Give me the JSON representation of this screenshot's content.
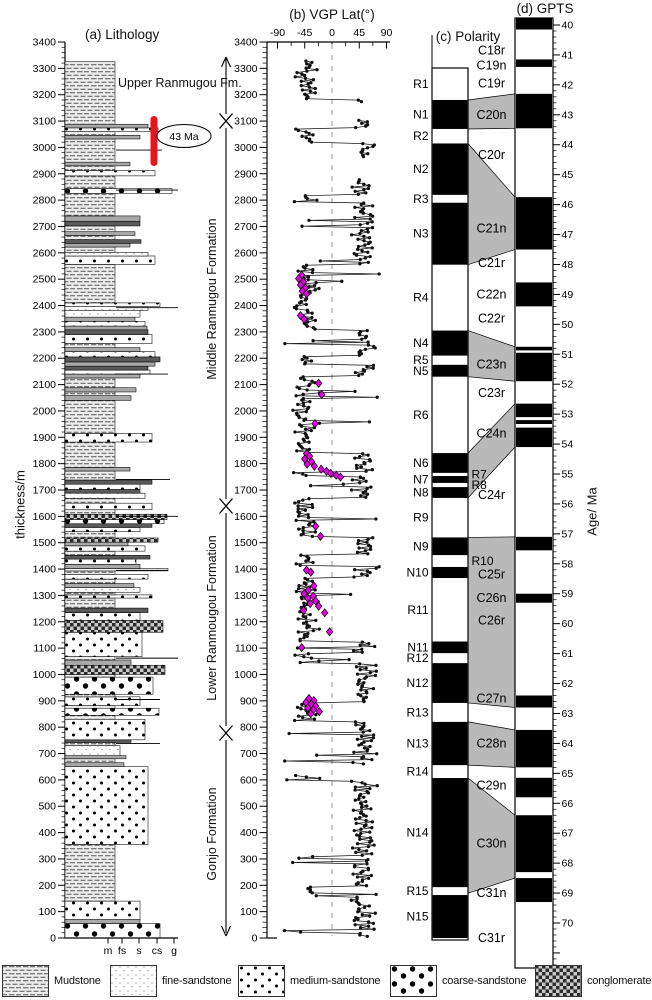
{
  "titles": {
    "a": "(a) Lithology",
    "b": "(b) VGP Lat(°)",
    "c": "(c) Polarity",
    "d": "(d) GPTS"
  },
  "axis_labels": {
    "thickness": "thickness/m",
    "age": "Age/ Ma",
    "grain_sizes": [
      "m",
      "fs",
      "s",
      "cs",
      "g"
    ]
  },
  "annotations": {
    "sample_age": "43 Ma"
  },
  "formations": [
    {
      "name": "Upper Ranmugou Fm.",
      "top_m": 3350,
      "base_m": 3100
    },
    {
      "name": "Middle Ranmugou Formation",
      "top_m": 3100,
      "base_m": 1640
    },
    {
      "name": "Lower Ranmougou Formation",
      "top_m": 1640,
      "base_m": 780
    },
    {
      "name": "Gonjo Formation",
      "top_m": 780,
      "base_m": 0
    }
  ],
  "legend": {
    "items": [
      {
        "label": "Mudstone",
        "lith": "m"
      },
      {
        "label": "fine-sandstone",
        "lith": "f"
      },
      {
        "label": "medium-sandstone",
        "lith": "s"
      },
      {
        "label": "coarse-sandstone",
        "lith": "c"
      },
      {
        "label": "conglomerate",
        "lith": "g"
      }
    ]
  },
  "colors": {
    "rejected_points": "#e500e5",
    "sample_bar": "#e8141e",
    "correlation_fill": "#b9b9b9",
    "axis": "#000000"
  },
  "chart_data": {
    "type": "composite-stratigraphy",
    "thickness_axis": {
      "min": 0,
      "max": 3400,
      "major_tick": 100,
      "minor_tick": 20
    },
    "vgp": {
      "xmin": -90,
      "xmax": 90,
      "xticks": [
        -90,
        -45,
        0,
        45,
        90
      ],
      "minor_xticks": [
        -67.5,
        -22.5,
        22.5,
        67.5
      ],
      "zero_line_dashed": true,
      "generation": {
        "seed": 9,
        "step_m": 5.5,
        "top_m": 3328,
        "bottom_m": 4,
        "normal_mean_lat": 52,
        "reverse_mean_lat": -43,
        "spread": 24,
        "outlier_fraction": 0.06,
        "gaps_m": [
          [
            3170,
            3106
          ],
          [
            2962,
            2880
          ],
          [
            658,
            622
          ]
        ]
      },
      "rejected_points": [
        [
          2515,
          -50
        ],
        [
          2502,
          -55
        ],
        [
          2490,
          -47
        ],
        [
          2478,
          -52
        ],
        [
          2466,
          -44
        ],
        [
          2455,
          -49
        ],
        [
          2444,
          -42
        ],
        [
          2362,
          -52
        ],
        [
          2348,
          -46
        ],
        [
          2105,
          -22
        ],
        [
          2062,
          -17
        ],
        [
          1952,
          -28
        ],
        [
          1838,
          -42
        ],
        [
          1828,
          -37
        ],
        [
          1818,
          -45
        ],
        [
          1808,
          -34
        ],
        [
          1798,
          -41
        ],
        [
          1790,
          -29
        ],
        [
          1779,
          -18
        ],
        [
          1771,
          -9
        ],
        [
          1763,
          -2
        ],
        [
          1756,
          7
        ],
        [
          1749,
          14
        ],
        [
          1562,
          -27
        ],
        [
          1524,
          -19
        ],
        [
          1396,
          -42
        ],
        [
          1388,
          -35
        ],
        [
          1336,
          -30
        ],
        [
          1320,
          -39
        ],
        [
          1306,
          -46
        ],
        [
          1297,
          -31
        ],
        [
          1289,
          -40
        ],
        [
          1279,
          -27
        ],
        [
          1269,
          -36
        ],
        [
          1259,
          -22
        ],
        [
          1243,
          -47
        ],
        [
          1234,
          -12
        ],
        [
          1162,
          -4
        ],
        [
          1102,
          -50
        ],
        [
          909,
          -38
        ],
        [
          901,
          -30
        ],
        [
          894,
          -43
        ],
        [
          887,
          -34
        ],
        [
          880,
          -27
        ],
        [
          873,
          -40
        ],
        [
          866,
          -31
        ],
        [
          859,
          -21
        ],
        [
          851,
          -35
        ]
      ]
    },
    "sample_age_marker": {
      "label": "43 Ma",
      "interval_m": [
        2930,
        3110
      ]
    },
    "lithology_layers": [
      [
        0,
        55,
        "c",
        160
      ],
      [
        55,
        70,
        "y",
        140
      ],
      [
        70,
        140,
        "s",
        140
      ],
      [
        140,
        355,
        "m",
        115
      ],
      [
        355,
        650,
        "s",
        148
      ],
      [
        650,
        665,
        "y",
        124
      ],
      [
        665,
        680,
        "m",
        115
      ],
      [
        680,
        692,
        "y",
        126
      ],
      [
        692,
        730,
        "f",
        120
      ],
      [
        730,
        742,
        "m",
        115
      ],
      [
        742,
        752,
        "d",
        131
      ],
      [
        752,
        830,
        "s",
        145
      ],
      [
        830,
        845,
        "m",
        115
      ],
      [
        845,
        872,
        "c",
        159
      ],
      [
        872,
        882,
        "m",
        115
      ],
      [
        882,
        915,
        "s",
        140
      ],
      [
        915,
        925,
        "m",
        115
      ],
      [
        925,
        990,
        "c",
        153
      ],
      [
        990,
        1000,
        "m",
        115
      ],
      [
        1000,
        1035,
        "g",
        165
      ],
      [
        1035,
        1055,
        "y",
        131
      ],
      [
        1055,
        1068,
        "m",
        115
      ],
      [
        1068,
        1160,
        "s",
        142
      ],
      [
        1160,
        1205,
        "g",
        163
      ],
      [
        1205,
        1235,
        "s",
        140
      ],
      [
        1235,
        1252,
        "d",
        148
      ],
      [
        1252,
        1290,
        "m",
        115
      ],
      [
        1290,
        1302,
        "s",
        152
      ],
      [
        1302,
        1312,
        "m",
        115
      ],
      [
        1312,
        1330,
        "f",
        140
      ],
      [
        1330,
        1345,
        "y",
        134
      ],
      [
        1345,
        1362,
        "m",
        115
      ],
      [
        1362,
        1380,
        "s",
        148
      ],
      [
        1380,
        1393,
        "m",
        115
      ],
      [
        1393,
        1402,
        "c",
        168
      ],
      [
        1402,
        1418,
        "y",
        140
      ],
      [
        1418,
        1438,
        "s",
        136
      ],
      [
        1438,
        1452,
        "d",
        150
      ],
      [
        1452,
        1468,
        "m",
        115
      ],
      [
        1468,
        1488,
        "s",
        145
      ],
      [
        1488,
        1502,
        "y",
        128
      ],
      [
        1502,
        1518,
        "g",
        158
      ],
      [
        1518,
        1542,
        "m",
        115
      ],
      [
        1542,
        1558,
        "s",
        140
      ],
      [
        1558,
        1572,
        "d",
        152
      ],
      [
        1572,
        1588,
        "c",
        164
      ],
      [
        1588,
        1608,
        "g",
        167
      ],
      [
        1608,
        1625,
        "m",
        115
      ],
      [
        1625,
        1650,
        "s",
        152
      ],
      [
        1650,
        1668,
        "m",
        115
      ],
      [
        1668,
        1688,
        "f",
        145
      ],
      [
        1688,
        1702,
        "d",
        140
      ],
      [
        1702,
        1722,
        "s",
        140
      ],
      [
        1722,
        1738,
        "d",
        152
      ],
      [
        1738,
        1772,
        "m",
        115
      ],
      [
        1772,
        1786,
        "y",
        130
      ],
      [
        1786,
        1882,
        "m",
        115
      ],
      [
        1882,
        1915,
        "s",
        152
      ],
      [
        1915,
        2040,
        "m",
        115
      ],
      [
        2040,
        2058,
        "y",
        131
      ],
      [
        2058,
        2072,
        "m",
        115
      ],
      [
        2072,
        2088,
        "y",
        136
      ],
      [
        2088,
        2125,
        "m",
        115
      ],
      [
        2125,
        2140,
        "y",
        140
      ],
      [
        2140,
        2155,
        "s",
        150
      ],
      [
        2155,
        2170,
        "d",
        148
      ],
      [
        2170,
        2186,
        "y",
        155
      ],
      [
        2186,
        2205,
        "d",
        160
      ],
      [
        2205,
        2225,
        "s",
        155
      ],
      [
        2225,
        2240,
        "y",
        140
      ],
      [
        2240,
        2256,
        "m",
        115
      ],
      [
        2256,
        2290,
        "s",
        152
      ],
      [
        2290,
        2308,
        "d",
        148
      ],
      [
        2308,
        2322,
        "y",
        147
      ],
      [
        2322,
        2340,
        "s",
        145
      ],
      [
        2340,
        2356,
        "y",
        135
      ],
      [
        2356,
        2382,
        "f",
        140
      ],
      [
        2382,
        2396,
        "f",
        148
      ],
      [
        2396,
        2410,
        "s",
        160
      ],
      [
        2410,
        2556,
        "m",
        115
      ],
      [
        2556,
        2588,
        "s",
        155
      ],
      [
        2588,
        2602,
        "f",
        148
      ],
      [
        2602,
        2622,
        "m",
        115
      ],
      [
        2622,
        2636,
        "y",
        130
      ],
      [
        2636,
        2650,
        "d",
        141
      ],
      [
        2650,
        2666,
        "m",
        115
      ],
      [
        2666,
        2680,
        "y",
        135
      ],
      [
        2680,
        2702,
        "m",
        115
      ],
      [
        2702,
        2720,
        "d",
        140
      ],
      [
        2720,
        2740,
        "y",
        140
      ],
      [
        2740,
        2826,
        "m",
        115
      ],
      [
        2826,
        2844,
        "c",
        172
      ],
      [
        2844,
        2892,
        "m",
        115
      ],
      [
        2892,
        2912,
        "s",
        155
      ],
      [
        2912,
        2930,
        "m",
        115
      ],
      [
        2930,
        2944,
        "y",
        130
      ],
      [
        2944,
        3032,
        "m",
        115
      ],
      [
        3032,
        3046,
        "y",
        140
      ],
      [
        3046,
        3060,
        "m",
        115
      ],
      [
        3060,
        3074,
        "s",
        158
      ],
      [
        3074,
        3088,
        "y",
        148
      ],
      [
        3088,
        3325,
        "m",
        115
      ]
    ],
    "stringers": [
      [
        2990,
        162
      ],
      [
        2838,
        178
      ],
      [
        2392,
        178
      ],
      [
        2140,
        168
      ],
      [
        1740,
        170
      ],
      [
        1600,
        178
      ],
      [
        1395,
        168
      ],
      [
        1062,
        178
      ],
      [
        905,
        160
      ],
      [
        738,
        160
      ]
    ],
    "polarity_zones": [
      {
        "label": "R1",
        "pol": "R",
        "top": 3300,
        "base": 3180
      },
      {
        "label": "N1",
        "pol": "N",
        "top": 3180,
        "base": 3070
      },
      {
        "label": "R2",
        "pol": "R",
        "top": 3070,
        "base": 3015
      },
      {
        "label": "N2",
        "pol": "N",
        "top": 3015,
        "base": 2820
      },
      {
        "label": "R3",
        "pol": "R",
        "top": 2820,
        "base": 2790
      },
      {
        "label": "N3",
        "pol": "N",
        "top": 2790,
        "base": 2555
      },
      {
        "label": "R4",
        "pol": "R",
        "top": 2555,
        "base": 2305
      },
      {
        "label": "N4",
        "pol": "N",
        "top": 2305,
        "base": 2210
      },
      {
        "label": "R5",
        "pol": "R",
        "top": 2210,
        "base": 2175
      },
      {
        "label": "N5",
        "pol": "N",
        "top": 2175,
        "base": 2130
      },
      {
        "label": "R6",
        "pol": "R",
        "top": 2130,
        "base": 1840
      },
      {
        "label": "N6",
        "pol": "N",
        "top": 1840,
        "base": 1765
      },
      {
        "label": "R7",
        "pol": "R",
        "top": 1765,
        "base": 1753,
        "side": "right"
      },
      {
        "label": "N7",
        "pol": "N",
        "top": 1753,
        "base": 1727
      },
      {
        "label": "R8",
        "pol": "R",
        "top": 1727,
        "base": 1711,
        "side": "right"
      },
      {
        "label": "N8",
        "pol": "N",
        "top": 1711,
        "base": 1670
      },
      {
        "label": "R9",
        "pol": "R",
        "top": 1670,
        "base": 1520
      },
      {
        "label": "N9",
        "pol": "N",
        "top": 1520,
        "base": 1453
      },
      {
        "label": "R10",
        "pol": "R",
        "top": 1453,
        "base": 1408,
        "side": "right"
      },
      {
        "label": "N10",
        "pol": "N",
        "top": 1408,
        "base": 1366
      },
      {
        "label": "R11",
        "pol": "R",
        "top": 1366,
        "base": 1125
      },
      {
        "label": "N11",
        "pol": "N",
        "top": 1125,
        "base": 1081
      },
      {
        "label": "R12",
        "pol": "R",
        "top": 1081,
        "base": 1043
      },
      {
        "label": "N12",
        "pol": "N",
        "top": 1043,
        "base": 892
      },
      {
        "label": "R13",
        "pol": "R",
        "top": 892,
        "base": 820
      },
      {
        "label": "N13",
        "pol": "N",
        "top": 820,
        "base": 656
      },
      {
        "label": "R14",
        "pol": "R",
        "top": 656,
        "base": 607
      },
      {
        "label": "N14",
        "pol": "N",
        "top": 607,
        "base": 193
      },
      {
        "label": "R15",
        "pol": "R",
        "top": 193,
        "base": 163
      },
      {
        "label": "N15",
        "pol": "N",
        "top": 163,
        "base": 0
      }
    ],
    "gpts": {
      "age_min": 40,
      "age_max": 70,
      "major_tick": 1,
      "minor_tick": 0.2,
      "ruler_end": 71.4,
      "normal_intervals": [
        [
          39.5,
          40.15
        ],
        [
          41.15,
          41.4
        ],
        [
          42.3,
          43.45
        ],
        [
          45.75,
          47.5
        ],
        [
          48.6,
          49.4
        ],
        [
          50.75,
          50.87
        ],
        [
          50.95,
          51.9
        ],
        [
          52.65,
          53.1
        ],
        [
          53.2,
          53.33
        ],
        [
          53.45,
          54.1
        ],
        [
          57.1,
          57.55
        ],
        [
          59.0,
          59.3
        ],
        [
          62.4,
          62.8
        ],
        [
          63.55,
          64.8
        ],
        [
          65.15,
          65.8
        ],
        [
          66.4,
          68.3
        ],
        [
          68.5,
          69.3
        ]
      ],
      "chron_labels": [
        [
          "C18r",
          40.85
        ],
        [
          "C19n",
          41.35
        ],
        [
          "C19r",
          41.95
        ],
        [
          "C20n",
          43.0
        ],
        [
          "C20r",
          44.35
        ],
        [
          "C21n",
          46.8
        ],
        [
          "C21r",
          47.95
        ],
        [
          "C22n",
          49.0
        ],
        [
          "C22r",
          49.8
        ],
        [
          "C23n",
          51.35
        ],
        [
          "C23r",
          52.3
        ],
        [
          "C24n",
          53.65
        ],
        [
          "C24r",
          55.7
        ],
        [
          "C25r",
          58.35
        ],
        [
          "C26n",
          59.15
        ],
        [
          "C26r",
          59.9
        ],
        [
          "C27n",
          62.5
        ],
        [
          "C28n",
          64.0
        ],
        [
          "C29n",
          65.4
        ],
        [
          "C30n",
          67.35
        ],
        [
          "C31n",
          69.0
        ],
        [
          "C31r",
          70.5
        ]
      ]
    },
    "correlations": [
      [
        3180,
        3070,
        42.3,
        43.45
      ],
      [
        3015,
        2555,
        45.75,
        47.5
      ],
      [
        2305,
        2130,
        50.75,
        51.9
      ],
      [
        1840,
        1670,
        52.65,
        54.1
      ],
      [
        1520,
        892,
        57.1,
        62.8
      ],
      [
        820,
        656,
        63.55,
        64.8
      ],
      [
        607,
        170,
        66.4,
        68.5
      ]
    ]
  }
}
